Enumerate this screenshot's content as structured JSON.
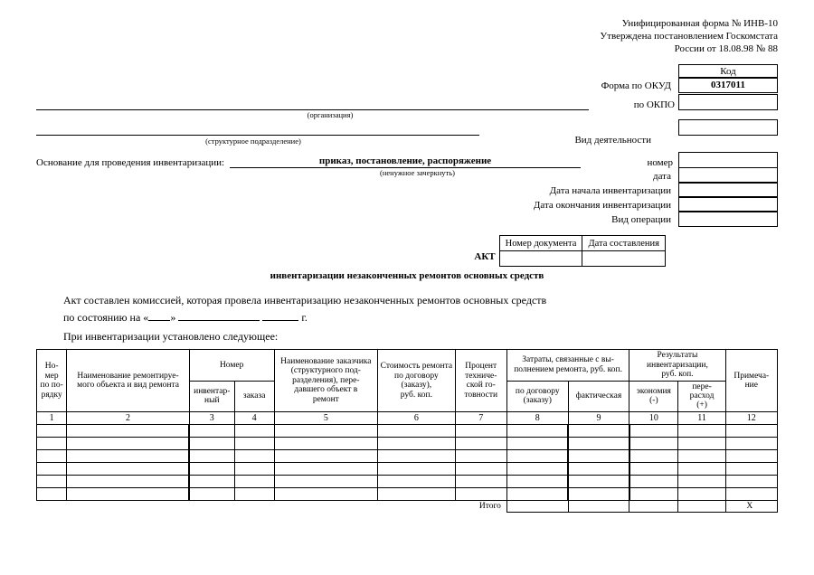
{
  "topRight": {
    "l1": "Унифицированная форма № ИНВ-10",
    "l2": "Утверждена постановлением Госкомстата",
    "l3": "России от 18.08.98 № 88"
  },
  "codeHeader": "Код",
  "okudLabel": "Форма по ОКУД",
  "okudCode": "0317011",
  "okpoLabel": "по ОКПО",
  "orgCaption": "(организация)",
  "deptCaption": "(структурное подразделение)",
  "vidDeyat": "Вид деятельности",
  "osnovanie": "Основание для проведения инвентаризации:",
  "osnovanieValue": "приказ, постановление, распоряжение",
  "osnovanieCaption": "(ненужное зачеркнуть)",
  "nomer": "номер",
  "data": "дата",
  "dateStart": "Дата начала инвентаризации",
  "dateEnd": "Дата окончания инвентаризации",
  "vidOper": "Вид операции",
  "akt": "АКТ",
  "aktSubtitle": "инвентаризации незаконченных ремонтов основных средств",
  "numDoc": "Номер документа",
  "dateComp": "Дата составления",
  "text1": "Акт составлен комиссией, которая провела инвентаризацию незаконченных ремонтов основных средств",
  "text2a": "по состоянию на «",
  "text2b": "» ",
  "text2c": " г.",
  "text3": "При инвентаризации установлено следующее:",
  "cols": {
    "c1": "Но-\nмер\nпо по-\nрядку",
    "c2": "Наименование ремонтируе-\nмого объекта и вид ремонта",
    "c3": "Номер",
    "c3a": "инвентар-\nный",
    "c3b": "заказа",
    "c4": "Наименование заказчика\n(структурного под-\nразделения), пере-\nдавшего объект в\nремонт",
    "c5": "Стоимость ремонта\nпо договору\n(заказу),\nруб. коп.",
    "c6": "Процент\nтехниче-\nской го-\nтовности",
    "c7": "Затраты, связанные с вы-\nполнением ремонта, руб. коп.",
    "c7a": "по договору\n(заказу)",
    "c7b": "фактическая",
    "c8": "Результаты\nинвентаризации,\nруб. коп.",
    "c8a": "экономия\n(-)",
    "c8b": "пере-\nрасход\n(+)",
    "c9": "Примеча-\nние"
  },
  "colnums": [
    "1",
    "2",
    "3",
    "4",
    "5",
    "6",
    "7",
    "8",
    "9",
    "10",
    "11",
    "12"
  ],
  "itogo": "Итого",
  "x": "X",
  "dataRows": 6
}
